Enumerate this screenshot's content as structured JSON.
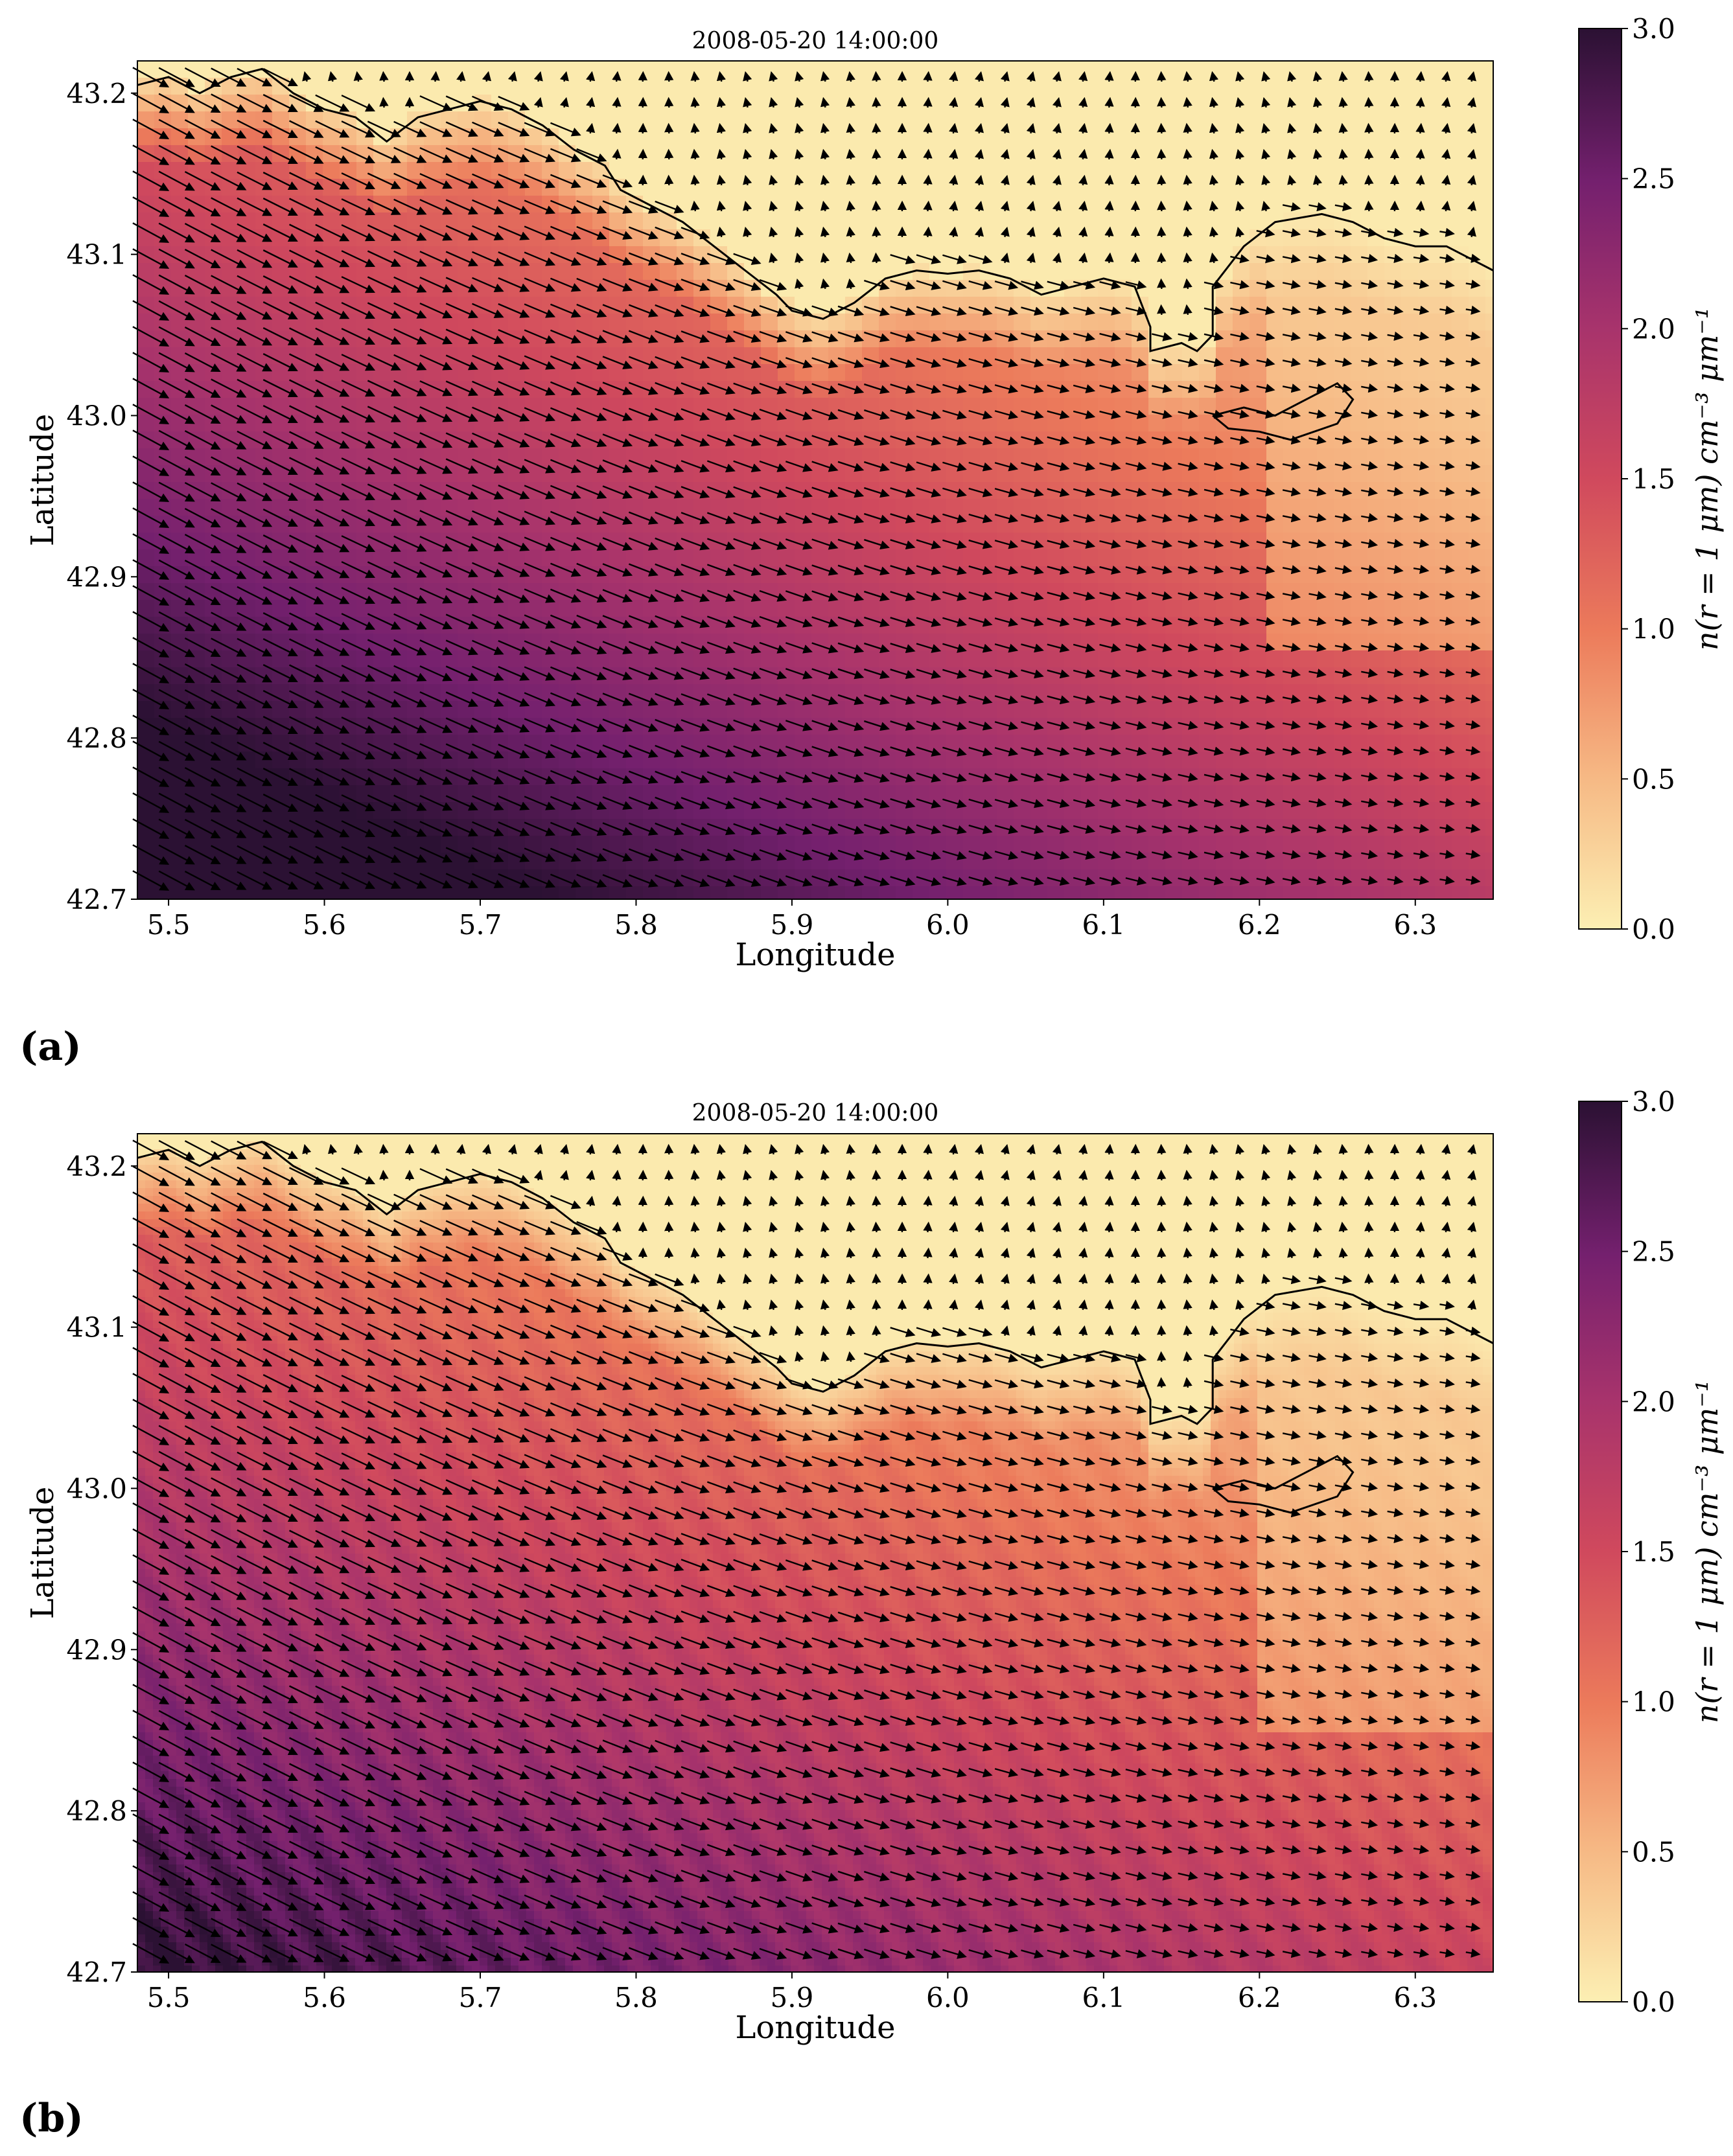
{
  "chart_data": [
    {
      "type": "heatmap",
      "panel_label": "(a)",
      "title": "2008-05-20 14:00:00",
      "xlabel": "Longitude",
      "ylabel": "Latitude",
      "xlim": [
        5.48,
        6.35
      ],
      "ylim": [
        42.7,
        43.22
      ],
      "x_ticks": [
        "5.5",
        "5.6",
        "5.7",
        "5.8",
        "5.9",
        "6.0",
        "6.1",
        "6.2",
        "6.3"
      ],
      "y_ticks": [
        "42.7",
        "42.8",
        "42.9",
        "43.0",
        "43.1",
        "43.2"
      ],
      "colormap": "magma_r",
      "colorbar": {
        "label": "n(r = 1 μm) cm⁻³ μm⁻¹",
        "min": 0.0,
        "max": 3.0,
        "ticks": [
          "0.0",
          "0.5",
          "1.0",
          "1.5",
          "2.0",
          "2.5",
          "3.0"
        ]
      },
      "overlay": "wind vectors (quiver), coastline contour",
      "field_description": "coarse-grid concentration; maximum (~3.0) in south-west corner, decreasing north-eastward to ~0 over land and north of coast",
      "wind_direction_sea": "north-west to south-east"
    },
    {
      "type": "heatmap",
      "panel_label": "(b)",
      "title": "2008-05-20 14:00:00",
      "xlabel": "Longitude",
      "ylabel": "Latitude",
      "xlim": [
        5.48,
        6.35
      ],
      "ylim": [
        42.7,
        43.22
      ],
      "x_ticks": [
        "5.5",
        "5.6",
        "5.7",
        "5.8",
        "5.9",
        "6.0",
        "6.1",
        "6.2",
        "6.3"
      ],
      "y_ticks": [
        "42.7",
        "42.8",
        "42.9",
        "43.0",
        "43.1",
        "43.2"
      ],
      "colormap": "magma_r",
      "colorbar": {
        "label": "n(r = 1 μm) cm⁻³ μm⁻¹",
        "min": 0.0,
        "max": 3.0,
        "ticks": [
          "0.0",
          "0.5",
          "1.0",
          "1.5",
          "2.0",
          "2.5",
          "3.0"
        ]
      },
      "overlay": "wind vectors (quiver), coastline contour",
      "field_description": "high-resolution concentration; maximum (~2.5) in south-west corner, streaky plumes behind islands, ~0 over land",
      "wind_direction_sea": "north-west to south-east"
    }
  ],
  "colors": {
    "cmap_stops": [
      "#fcefb3",
      "#f6b884",
      "#ec7b5b",
      "#d0495d",
      "#a7336c",
      "#74206e",
      "#2b1133"
    ],
    "coastline": "#000000",
    "arrow": "#000000"
  },
  "coastline_lonlat": [
    [
      5.48,
      43.205
    ],
    [
      5.5,
      43.21
    ],
    [
      5.52,
      43.2
    ],
    [
      5.54,
      43.21
    ],
    [
      5.56,
      43.215
    ],
    [
      5.58,
      43.2
    ],
    [
      5.6,
      43.19
    ],
    [
      5.62,
      43.185
    ],
    [
      5.64,
      43.17
    ],
    [
      5.66,
      43.185
    ],
    [
      5.68,
      43.19
    ],
    [
      5.7,
      43.195
    ],
    [
      5.72,
      43.19
    ],
    [
      5.74,
      43.18
    ],
    [
      5.76,
      43.165
    ],
    [
      5.78,
      43.155
    ],
    [
      5.79,
      43.14
    ],
    [
      5.81,
      43.13
    ],
    [
      5.83,
      43.12
    ],
    [
      5.85,
      43.105
    ],
    [
      5.87,
      43.09
    ],
    [
      5.89,
      43.075
    ],
    [
      5.9,
      43.065
    ],
    [
      5.92,
      43.06
    ],
    [
      5.94,
      43.07
    ],
    [
      5.96,
      43.085
    ],
    [
      5.98,
      43.09
    ],
    [
      6.0,
      43.088
    ],
    [
      6.02,
      43.09
    ],
    [
      6.04,
      43.085
    ],
    [
      6.06,
      43.075
    ],
    [
      6.08,
      43.08
    ],
    [
      6.1,
      43.085
    ],
    [
      6.12,
      43.08
    ],
    [
      6.13,
      43.055
    ],
    [
      6.13,
      43.04
    ],
    [
      6.15,
      43.045
    ],
    [
      6.16,
      43.04
    ],
    [
      6.17,
      43.05
    ],
    [
      6.17,
      43.08
    ],
    [
      6.19,
      43.105
    ],
    [
      6.21,
      43.12
    ],
    [
      6.24,
      43.125
    ],
    [
      6.26,
      43.12
    ],
    [
      6.28,
      43.11
    ],
    [
      6.3,
      43.105
    ],
    [
      6.32,
      43.105
    ],
    [
      6.34,
      43.095
    ],
    [
      6.35,
      43.09
    ]
  ],
  "island_lonlat": [
    [
      6.17,
      43.0
    ],
    [
      6.19,
      43.005
    ],
    [
      6.21,
      43.0
    ],
    [
      6.23,
      43.01
    ],
    [
      6.25,
      43.02
    ],
    [
      6.26,
      43.01
    ],
    [
      6.25,
      42.995
    ],
    [
      6.22,
      42.985
    ],
    [
      6.2,
      42.99
    ],
    [
      6.18,
      42.992
    ],
    [
      6.17,
      43.0
    ]
  ]
}
